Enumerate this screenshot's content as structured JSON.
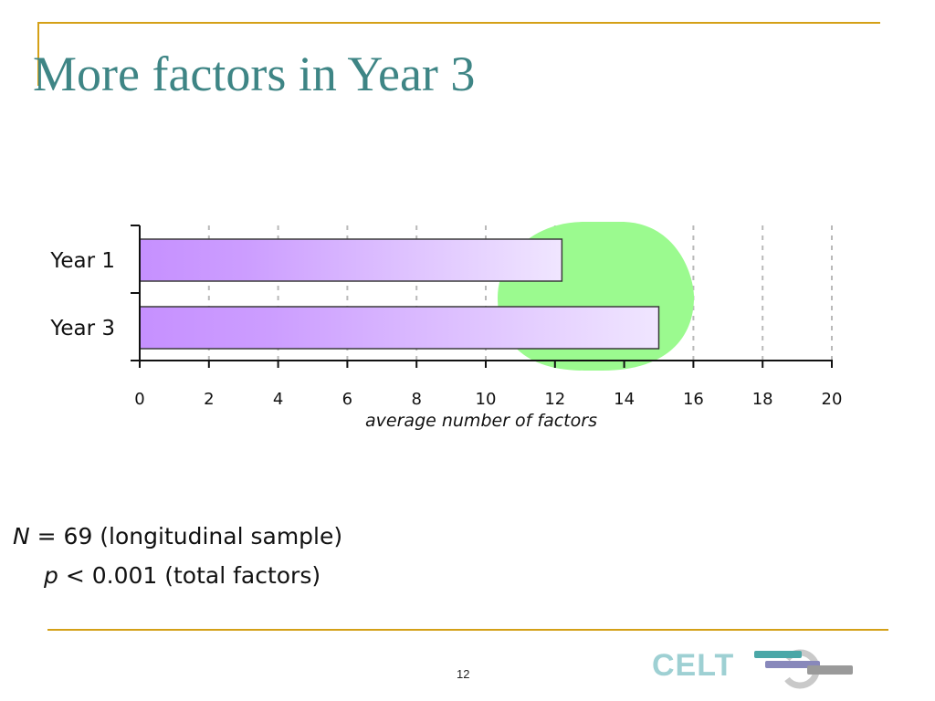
{
  "slide": {
    "title": "More factors in Year 3",
    "notes": {
      "n_symbol": "N",
      "n_text": " = 69 (longitudinal sample)",
      "p_symbol": "p",
      "p_text": " < 0.001 (total factors)"
    },
    "page_number": "12",
    "logo_text": "CELT",
    "accent_color": "#d4a017",
    "title_color": "#3e8585"
  },
  "chart_data": {
    "type": "bar",
    "orientation": "horizontal",
    "categories": [
      "Year 1",
      "Year 3"
    ],
    "values": [
      12.2,
      15.0
    ],
    "xlabel": "average number of factors",
    "xlim": [
      0,
      20
    ],
    "xticks": [
      "0",
      "2",
      "4",
      "6",
      "8",
      "10",
      "12",
      "14",
      "16",
      "18",
      "20"
    ],
    "grid": "vertical dashed",
    "bar_gradient": [
      "#c690ff",
      "#f0e6ff"
    ],
    "highlight_color": "#9bfa8f"
  }
}
